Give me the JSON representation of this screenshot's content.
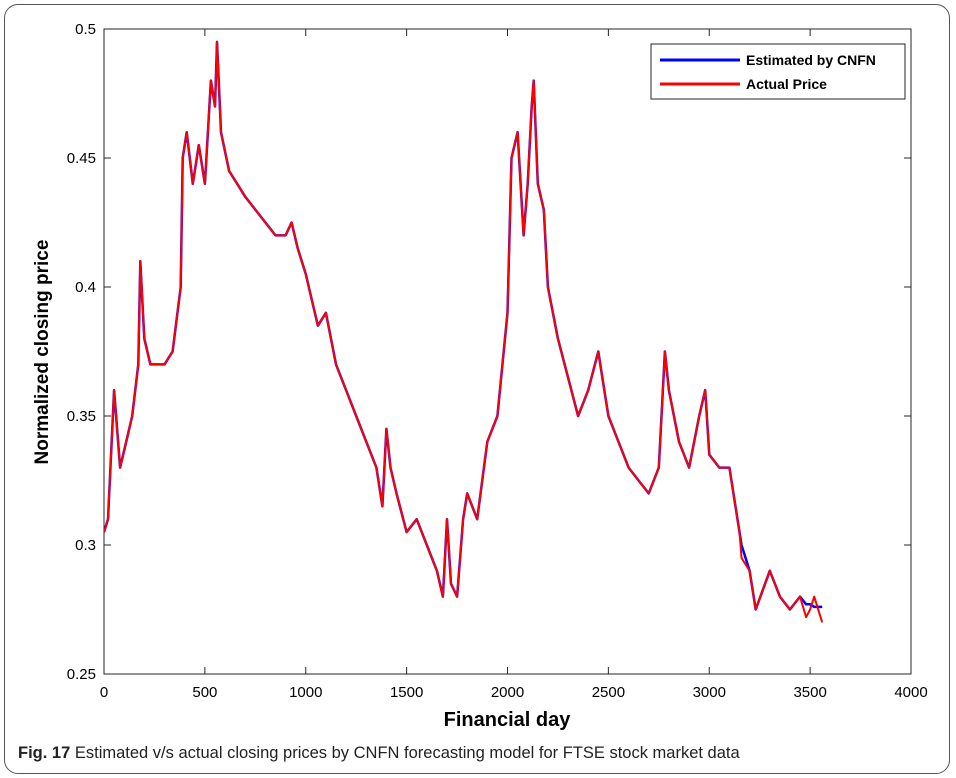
{
  "caption": {
    "label": "Fig. 17",
    "text": " Estimated v/s actual closing prices by CNFN forecasting model for FTSE stock market data"
  },
  "chart_data": {
    "type": "line",
    "xlabel": "Financial day",
    "ylabel": "Normalized closing price",
    "xlim": [
      0,
      4000
    ],
    "ylim": [
      0.25,
      0.5
    ],
    "xticks": [
      0,
      500,
      1000,
      1500,
      2000,
      2500,
      3000,
      3500,
      4000
    ],
    "yticks": [
      0.25,
      0.3,
      0.35,
      0.4,
      0.45,
      0.5
    ],
    "xtick_labels": [
      "0",
      "500",
      "1000",
      "1500",
      "2000",
      "2500",
      "3000",
      "3500",
      "4000"
    ],
    "ytick_labels": [
      "0.25",
      "0.3",
      "0.35",
      "0.4",
      "0.45",
      "0.5"
    ],
    "legend_position": "top-right",
    "grid": false,
    "series": [
      {
        "name": "Estimated by CNFN",
        "color": "#0000ff",
        "x": [
          0,
          20,
          50,
          80,
          110,
          140,
          170,
          180,
          200,
          230,
          260,
          300,
          340,
          380,
          390,
          410,
          440,
          470,
          500,
          530,
          550,
          560,
          580,
          620,
          660,
          700,
          750,
          800,
          850,
          900,
          930,
          960,
          1000,
          1030,
          1060,
          1100,
          1150,
          1200,
          1250,
          1300,
          1350,
          1380,
          1400,
          1420,
          1450,
          1500,
          1550,
          1600,
          1650,
          1680,
          1700,
          1720,
          1750,
          1780,
          1800,
          1850,
          1900,
          1950,
          2000,
          2020,
          2050,
          2080,
          2100,
          2120,
          2130,
          2150,
          2180,
          2200,
          2250,
          2300,
          2350,
          2400,
          2450,
          2470,
          2500,
          2550,
          2600,
          2650,
          2700,
          2750,
          2780,
          2800,
          2850,
          2900,
          2950,
          2980,
          3000,
          3050,
          3100,
          3150,
          3160,
          3200,
          3230,
          3300,
          3350,
          3400,
          3450,
          3480,
          3500,
          3520,
          3560
        ],
        "y": [
          0.305,
          0.31,
          0.36,
          0.33,
          0.34,
          0.35,
          0.37,
          0.41,
          0.38,
          0.37,
          0.37,
          0.37,
          0.375,
          0.4,
          0.45,
          0.46,
          0.44,
          0.455,
          0.44,
          0.48,
          0.47,
          0.495,
          0.46,
          0.445,
          0.44,
          0.435,
          0.43,
          0.425,
          0.42,
          0.42,
          0.425,
          0.415,
          0.405,
          0.395,
          0.385,
          0.39,
          0.37,
          0.36,
          0.35,
          0.34,
          0.33,
          0.315,
          0.345,
          0.33,
          0.32,
          0.305,
          0.31,
          0.3,
          0.29,
          0.28,
          0.31,
          0.285,
          0.28,
          0.31,
          0.32,
          0.31,
          0.34,
          0.35,
          0.39,
          0.45,
          0.46,
          0.42,
          0.44,
          0.47,
          0.48,
          0.44,
          0.43,
          0.4,
          0.38,
          0.365,
          0.35,
          0.36,
          0.375,
          0.365,
          0.35,
          0.34,
          0.33,
          0.325,
          0.32,
          0.33,
          0.375,
          0.36,
          0.34,
          0.33,
          0.35,
          0.36,
          0.335,
          0.33,
          0.33,
          0.305,
          0.3,
          0.29,
          0.275,
          0.29,
          0.28,
          0.275,
          0.28,
          0.277,
          0.277,
          0.276,
          0.276
        ]
      },
      {
        "name": "Actual Price",
        "color": "#ff0000",
        "x": [
          0,
          20,
          50,
          80,
          110,
          140,
          170,
          180,
          200,
          230,
          260,
          300,
          340,
          380,
          390,
          410,
          440,
          470,
          500,
          530,
          550,
          560,
          580,
          620,
          660,
          700,
          750,
          800,
          850,
          900,
          930,
          960,
          1000,
          1030,
          1060,
          1100,
          1150,
          1200,
          1250,
          1300,
          1350,
          1380,
          1400,
          1420,
          1450,
          1500,
          1550,
          1600,
          1650,
          1680,
          1700,
          1720,
          1750,
          1780,
          1800,
          1850,
          1900,
          1950,
          2000,
          2020,
          2050,
          2080,
          2100,
          2120,
          2130,
          2150,
          2180,
          2200,
          2250,
          2300,
          2350,
          2400,
          2450,
          2470,
          2500,
          2550,
          2600,
          2650,
          2700,
          2750,
          2780,
          2800,
          2850,
          2900,
          2950,
          2980,
          3000,
          3050,
          3100,
          3150,
          3160,
          3200,
          3230,
          3300,
          3350,
          3400,
          3450,
          3480,
          3500,
          3520,
          3560
        ],
        "y": [
          0.305,
          0.31,
          0.36,
          0.33,
          0.34,
          0.35,
          0.37,
          0.41,
          0.38,
          0.37,
          0.37,
          0.37,
          0.375,
          0.4,
          0.45,
          0.46,
          0.44,
          0.455,
          0.44,
          0.48,
          0.47,
          0.495,
          0.46,
          0.445,
          0.44,
          0.435,
          0.43,
          0.425,
          0.42,
          0.42,
          0.425,
          0.415,
          0.405,
          0.395,
          0.385,
          0.39,
          0.37,
          0.36,
          0.35,
          0.34,
          0.33,
          0.315,
          0.345,
          0.33,
          0.32,
          0.305,
          0.31,
          0.3,
          0.29,
          0.28,
          0.31,
          0.285,
          0.28,
          0.31,
          0.32,
          0.31,
          0.34,
          0.35,
          0.39,
          0.45,
          0.46,
          0.42,
          0.44,
          0.47,
          0.48,
          0.44,
          0.43,
          0.4,
          0.38,
          0.365,
          0.35,
          0.36,
          0.375,
          0.365,
          0.35,
          0.34,
          0.33,
          0.325,
          0.32,
          0.33,
          0.375,
          0.36,
          0.34,
          0.33,
          0.35,
          0.36,
          0.335,
          0.33,
          0.33,
          0.305,
          0.295,
          0.29,
          0.275,
          0.29,
          0.28,
          0.275,
          0.28,
          0.272,
          0.275,
          0.28,
          0.27
        ]
      }
    ]
  }
}
